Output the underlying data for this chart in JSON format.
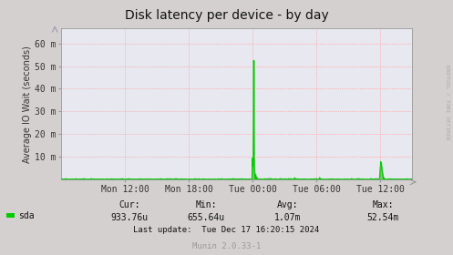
{
  "title": "Disk latency per device - by day",
  "ylabel": "Average IO Wait (seconds)",
  "background_color": "#d4d0d0",
  "plot_bg_color": "#e8e8f0",
  "line_color": "#00cc00",
  "x_ticks_labels": [
    "Mon 12:00",
    "Mon 18:00",
    "Tue 00:00",
    "Tue 06:00",
    "Tue 12:00"
  ],
  "x_tick_pos": [
    0.182,
    0.364,
    0.545,
    0.727,
    0.909
  ],
  "y_ticks_labels": [
    "10 m",
    "20 m",
    "30 m",
    "40 m",
    "50 m",
    "60 m"
  ],
  "y_ticks_values": [
    0.01,
    0.02,
    0.03,
    0.04,
    0.05,
    0.06
  ],
  "ylim": [
    0,
    0.0667
  ],
  "legend_label": "sda",
  "legend_color": "#00cc00",
  "cur_label": "Cur:",
  "cur_value": "933.76u",
  "min_label": "Min:",
  "min_value": "655.64u",
  "avg_label": "Avg:",
  "avg_value": "1.07m",
  "max_label": "Max:",
  "max_value": "52.54m",
  "last_update": "Last update:  Tue Dec 17 16:20:15 2024",
  "footer": "Munin 2.0.33-1",
  "rrdtool_label": "RRDTOOL / TOBI OETIKER",
  "title_fontsize": 10,
  "axis_fontsize": 7,
  "stats_fontsize": 7,
  "footer_fontsize": 6.5,
  "num_points": 800
}
